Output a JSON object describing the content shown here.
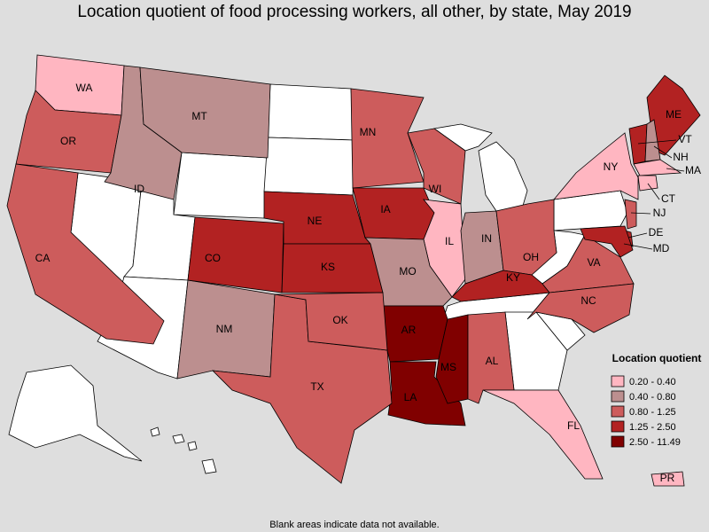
{
  "title": "Location quotient of food processing workers, all other, by state, May 2019",
  "legend": {
    "title": "Location quotient",
    "items": [
      {
        "label": "0.20 - 0.40",
        "color": "#ffb6c1"
      },
      {
        "label": "0.40 - 0.80",
        "color": "#bc8f8f"
      },
      {
        "label": "0.80 - 1.25",
        "color": "#cd5c5c"
      },
      {
        "label": "1.25 - 2.50",
        "color": "#b22222"
      },
      {
        "label": "2.50 - 11.49",
        "color": "#800000"
      }
    ]
  },
  "states": [
    {
      "abbr": "WA",
      "range": "0.20 - 0.40"
    },
    {
      "abbr": "OR",
      "range": "0.80 - 1.25"
    },
    {
      "abbr": "CA",
      "range": "0.80 - 1.25"
    },
    {
      "abbr": "ID",
      "range": "0.40 - 0.80"
    },
    {
      "abbr": "MT",
      "range": "0.40 - 0.80"
    },
    {
      "abbr": "NM",
      "range": "0.40 - 0.80"
    },
    {
      "abbr": "CO",
      "range": "1.25 - 2.50"
    },
    {
      "abbr": "NE",
      "range": "1.25 - 2.50"
    },
    {
      "abbr": "KS",
      "range": "1.25 - 2.50"
    },
    {
      "abbr": "IA",
      "range": "1.25 - 2.50"
    },
    {
      "abbr": "MN",
      "range": "0.80 - 1.25"
    },
    {
      "abbr": "WI",
      "range": "0.80 - 1.25"
    },
    {
      "abbr": "IL",
      "range": "0.20 - 0.40"
    },
    {
      "abbr": "MO",
      "range": "0.40 - 0.80"
    },
    {
      "abbr": "AR",
      "range": "2.50 - 11.49"
    },
    {
      "abbr": "LA",
      "range": "2.50 - 11.49"
    },
    {
      "abbr": "MS",
      "range": "2.50 - 11.49"
    },
    {
      "abbr": "AL",
      "range": "0.80 - 1.25"
    },
    {
      "abbr": "TX",
      "range": "0.80 - 1.25"
    },
    {
      "abbr": "OK",
      "range": "0.80 - 1.25"
    },
    {
      "abbr": "IN",
      "range": "0.40 - 0.80"
    },
    {
      "abbr": "OH",
      "range": "0.80 - 1.25"
    },
    {
      "abbr": "KY",
      "range": "1.25 - 2.50"
    },
    {
      "abbr": "VA",
      "range": "0.80 - 1.25"
    },
    {
      "abbr": "NC",
      "range": "0.80 - 1.25"
    },
    {
      "abbr": "FL",
      "range": "0.20 - 0.40"
    },
    {
      "abbr": "NY",
      "range": "0.20 - 0.40"
    },
    {
      "abbr": "ME",
      "range": "1.25 - 2.50"
    },
    {
      "abbr": "VT",
      "range": "1.25 - 2.50"
    },
    {
      "abbr": "NH",
      "range": "0.40 - 0.80"
    },
    {
      "abbr": "MA",
      "range": "0.20 - 0.40"
    },
    {
      "abbr": "CT",
      "range": "0.20 - 0.40"
    },
    {
      "abbr": "NJ",
      "range": "0.80 - 1.25"
    },
    {
      "abbr": "DE",
      "range": "1.25 - 2.50"
    },
    {
      "abbr": "MD",
      "range": "1.25 - 2.50"
    },
    {
      "abbr": "PR",
      "range": "0.20 - 0.40"
    }
  ],
  "footnote": "Blank areas indicate data not available."
}
